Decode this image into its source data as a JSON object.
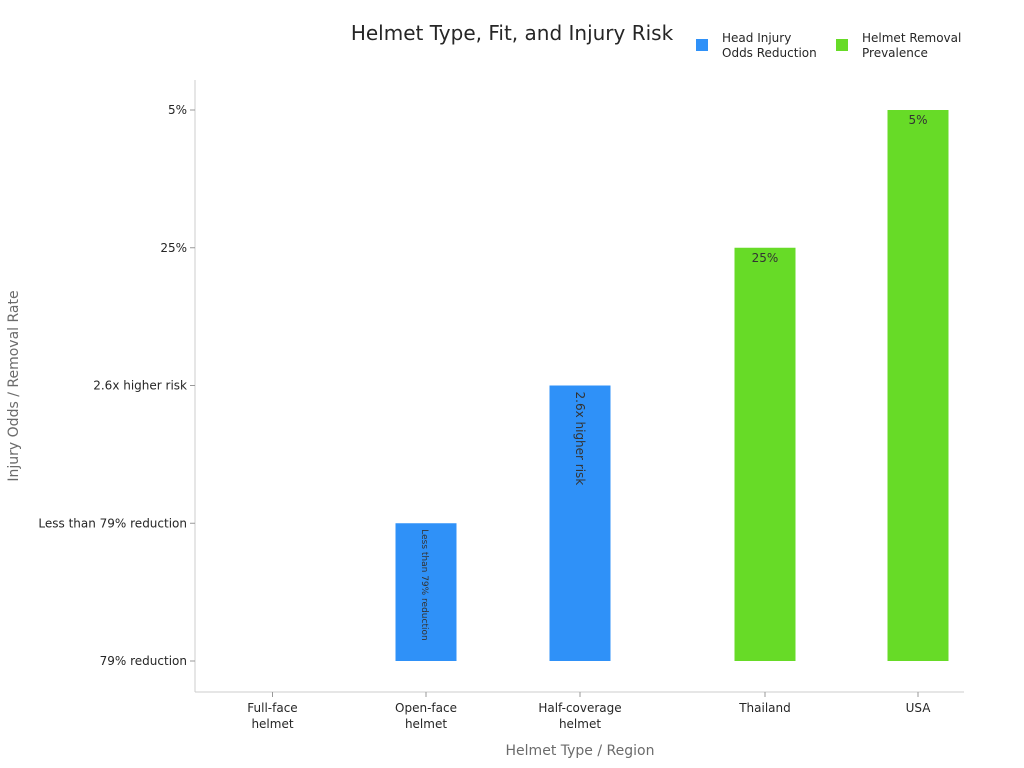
{
  "chart_data": {
    "type": "bar",
    "title": "Helmet Type, Fit, and Injury Risk",
    "xlabel": "Helmet Type / Region",
    "ylabel": "Injury Odds / Removal Rate",
    "y_scale": "categorical",
    "y_categories": [
      "79% reduction",
      "Less than 79% reduction",
      "2.6x higher risk",
      "25%",
      "5%"
    ],
    "categories": [
      [
        "Full-face",
        "helmet"
      ],
      [
        "Open-face",
        "helmet"
      ],
      [
        "Half-coverage",
        "helmet"
      ],
      [
        "Thailand"
      ],
      [
        "USA"
      ]
    ],
    "series": [
      {
        "name": [
          "Head Injury",
          "Odds Reduction"
        ],
        "color": "#2f91f8",
        "values": [
          "79% reduction",
          "Less than 79% reduction",
          "2.6x higher risk",
          null,
          null
        ],
        "labels": [
          "",
          "Less than 79% reduction",
          "2.6x higher risk",
          "",
          ""
        ]
      },
      {
        "name": [
          "Helmet Removal",
          "Prevalence"
        ],
        "color": "#67db27",
        "values": [
          null,
          null,
          null,
          "25%",
          "5%"
        ],
        "labels": [
          "",
          "",
          "",
          "25%",
          "5%"
        ]
      }
    ],
    "baseline": "79% reduction",
    "legend_position": "top-right",
    "grid": false
  }
}
